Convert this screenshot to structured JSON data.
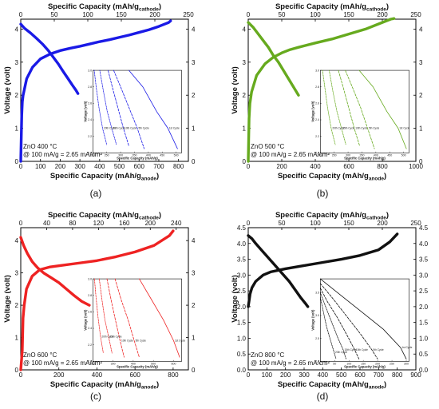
{
  "chart_data": [
    {
      "id": "a",
      "type": "line",
      "panel_label": "(a)",
      "color": "#1a1ae6",
      "xlabel_top": "Specific Capacity (mAh/g",
      "xlabel_top_sub": "cathode",
      "xlabel_top_suffix": ")",
      "xlabel_bottom": "Specific Capacity (mAh/g",
      "xlabel_bottom_sub": "anode",
      "xlabel_bottom_suffix": ")",
      "ylabel": "Voltage (volt)",
      "xlim": [
        0,
        850
      ],
      "ylim": [
        0,
        4.3
      ],
      "x_ticks": [
        0,
        100,
        200,
        300,
        400,
        500,
        600,
        700,
        800
      ],
      "top_ticks": [
        0,
        50,
        100,
        150,
        200,
        250
      ],
      "y_ticks": [
        0,
        1,
        2,
        3,
        4
      ],
      "top_scale": 3.4,
      "legend": [
        "ZnO 400 °C",
        "@ 100 mA/g = 2.65 mA/cm²"
      ],
      "series": [
        {
          "x": [
            0,
            5,
            8,
            12,
            30,
            60,
            100,
            150,
            200,
            250,
            300,
            350,
            400,
            450,
            500,
            550,
            600,
            650,
            700,
            750,
            760
          ],
          "y": [
            0,
            1.4,
            1.8,
            2.0,
            2.5,
            2.85,
            3.1,
            3.25,
            3.35,
            3.42,
            3.48,
            3.55,
            3.62,
            3.68,
            3.75,
            3.82,
            3.9,
            3.98,
            4.08,
            4.2,
            4.25
          ]
        },
        {
          "x": [
            0,
            20,
            50,
            80,
            110,
            140,
            165,
            190,
            215,
            240,
            260,
            280,
            290
          ],
          "y": [
            4.15,
            4.02,
            3.88,
            3.72,
            3.55,
            3.35,
            3.15,
            2.95,
            2.72,
            2.5,
            2.32,
            2.15,
            2.05
          ]
        }
      ],
      "inset": {
        "title": "",
        "xlabel": "Specific Capacity (mAh/g)",
        "ylabel": "Voltage (volt)",
        "x_ticks": [
          200,
          250,
          300,
          350,
          400,
          450,
          500
        ],
        "y_ticks": [
          2.0,
          2.2,
          2.4,
          2.6,
          2.8,
          3.0
        ],
        "xlim": [
          200,
          520
        ],
        "ylim": [
          2.0,
          3.0
        ],
        "curves": [
          {
            "label": "1st Cycle",
            "style": "solid",
            "x": [
              330,
              380,
              430,
              470,
              505
            ],
            "y": [
              3.0,
              2.8,
              2.5,
              2.3,
              2.05
            ]
          },
          {
            "label": "5th Cycle",
            "style": "dashed",
            "x": [
              275,
              300,
              330,
              360,
              385
            ],
            "y": [
              3.0,
              2.8,
              2.55,
              2.3,
              2.05
            ]
          },
          {
            "label": "10th Cycle",
            "style": "dashed",
            "x": [
              255,
              270,
              290,
              310,
              330
            ],
            "y": [
              3.0,
              2.8,
              2.55,
              2.3,
              2.08
            ]
          },
          {
            "label": "15th Cycle",
            "style": "dotted",
            "x": [
              225,
              238,
              252,
              268,
              285
            ],
            "y": [
              3.0,
              2.75,
              2.5,
              2.3,
              2.1
            ]
          },
          {
            "label": "20th Cycle",
            "style": "dotted",
            "x": [
              205,
              212,
              222,
              235,
              250
            ],
            "y": [
              3.0,
              2.8,
              2.55,
              2.3,
              2.1
            ]
          }
        ]
      }
    },
    {
      "id": "b",
      "type": "line",
      "panel_label": "(b)",
      "color": "#66aa1e",
      "xlabel_top": "Specific Capacity (mAh/g",
      "xlabel_top_sub": "cathode",
      "xlabel_top_suffix": ")",
      "xlabel_bottom": "Specific Capacity (mAh/g",
      "xlabel_bottom_sub": "anode",
      "xlabel_bottom_suffix": ")",
      "ylabel": "Voltage (volt)",
      "xlim": [
        0,
        1000
      ],
      "ylim": [
        0,
        4.3
      ],
      "x_ticks": [
        0,
        200,
        400,
        600,
        800,
        1000
      ],
      "top_ticks": [
        0,
        50,
        100,
        150,
        200,
        250
      ],
      "y_ticks": [
        0,
        1,
        2,
        3,
        4
      ],
      "top_scale": 4.0,
      "legend": [
        "ZnO 500 °C",
        "@ 100 mA/g = 2.65 mA/cm²"
      ],
      "series": [
        {
          "x": [
            0,
            5,
            10,
            20,
            50,
            100,
            150,
            200,
            250,
            300,
            400,
            500,
            600,
            700,
            800,
            850,
            870
          ],
          "y": [
            0,
            1.3,
            1.75,
            2.1,
            2.6,
            2.95,
            3.15,
            3.28,
            3.38,
            3.45,
            3.58,
            3.7,
            3.85,
            4.0,
            4.2,
            4.3,
            4.32
          ]
        },
        {
          "x": [
            0,
            30,
            60,
            90,
            120,
            150,
            180,
            210,
            240,
            270,
            300
          ],
          "y": [
            4.2,
            4.05,
            3.85,
            3.65,
            3.45,
            3.2,
            3.0,
            2.75,
            2.5,
            2.25,
            2.0
          ]
        }
      ],
      "inset": {
        "title": "",
        "xlabel": "Specific Capacity (mAh/g)",
        "ylabel": "Voltage (volt)",
        "x_ticks": [
          200,
          250,
          300,
          350,
          400,
          450,
          500
        ],
        "y_ticks": [
          2.0,
          2.2,
          2.4,
          2.6,
          2.8,
          3.0
        ],
        "xlim": [
          200,
          520
        ],
        "ylim": [
          2.0,
          3.0
        ],
        "curves": [
          {
            "label": "1st Cycle",
            "style": "solid",
            "x": [
              340,
              390,
              440,
              480,
              510
            ],
            "y": [
              3.0,
              2.8,
              2.5,
              2.3,
              2.05
            ]
          },
          {
            "label": "5th Cycle",
            "style": "dashed",
            "x": [
              290,
              315,
              345,
              370,
              395
            ],
            "y": [
              3.0,
              2.8,
              2.55,
              2.3,
              2.05
            ]
          },
          {
            "label": "10th Cycle",
            "style": "dashed",
            "x": [
              265,
              282,
              302,
              322,
              342
            ],
            "y": [
              3.0,
              2.8,
              2.55,
              2.3,
              2.08
            ]
          },
          {
            "label": "15th Cycle",
            "style": "dotted",
            "x": [
              232,
              245,
              260,
              276,
              292
            ],
            "y": [
              3.0,
              2.75,
              2.5,
              2.3,
              2.1
            ]
          },
          {
            "label": "20th Cycle",
            "style": "dotted",
            "x": [
              208,
              216,
              226,
              239,
              254
            ],
            "y": [
              3.0,
              2.8,
              2.55,
              2.3,
              2.1
            ]
          }
        ]
      }
    },
    {
      "id": "c",
      "type": "line",
      "panel_label": "(c)",
      "color": "#ee2222",
      "xlabel_top": "Specific Capacity (mAh/g",
      "xlabel_top_sub": "cathode",
      "xlabel_top_suffix": ")",
      "xlabel_bottom": "Specific Capacity (mAh/g",
      "xlabel_bottom_sub": "anode",
      "xlabel_bottom_suffix": ")",
      "ylabel": "Voltage (volt)",
      "xlim": [
        0,
        880
      ],
      "ylim": [
        0,
        4.4
      ],
      "x_ticks": [
        0,
        200,
        400,
        600,
        800
      ],
      "top_ticks": [
        0,
        40,
        80,
        120,
        160,
        200,
        240
      ],
      "y_ticks": [
        0,
        1,
        2,
        3,
        4
      ],
      "top_scale": 3.4,
      "legend": [
        "ZnO 600 °C",
        "@ 100 mA/g = 2.65 mA/cm²"
      ],
      "series": [
        {
          "x": [
            0,
            8,
            12,
            18,
            30,
            60,
            100,
            150,
            200,
            300,
            400,
            500,
            600,
            700,
            780,
            800
          ],
          "y": [
            0,
            0.6,
            1.6,
            2.0,
            2.5,
            2.9,
            3.1,
            3.18,
            3.22,
            3.3,
            3.38,
            3.5,
            3.65,
            3.85,
            4.15,
            4.3
          ]
        },
        {
          "x": [
            0,
            15,
            35,
            60,
            90,
            120,
            160,
            200,
            240,
            280,
            320,
            360
          ],
          "y": [
            4.1,
            3.85,
            3.6,
            3.35,
            3.15,
            3.0,
            2.85,
            2.7,
            2.5,
            2.3,
            2.12,
            2.0
          ]
        }
      ],
      "inset": {
        "title": "",
        "xlabel": "Specific Capacity (mAh/g)",
        "ylabel": "Voltage (volt)",
        "x_ticks": [
          200,
          300,
          400,
          500,
          600
        ],
        "y_ticks": [
          2.0,
          2.2,
          2.4,
          2.6,
          2.8,
          3.0
        ],
        "xlim": [
          200,
          640
        ],
        "ylim": [
          2.0,
          3.0
        ],
        "curves": [
          {
            "label": "1st Cycle",
            "style": "solid",
            "x": [
              430,
              490,
              550,
              600,
              630
            ],
            "y": [
              3.0,
              2.75,
              2.5,
              2.25,
              2.05
            ]
          },
          {
            "label": "5th Cycle",
            "style": "dashed",
            "x": [
              310,
              340,
              375,
              405,
              430
            ],
            "y": [
              3.0,
              2.75,
              2.5,
              2.25,
              2.05
            ]
          },
          {
            "label": "10th Cycle",
            "style": "dashed",
            "x": [
              270,
              290,
              312,
              335,
              355
            ],
            "y": [
              3.0,
              2.75,
              2.5,
              2.25,
              2.05
            ]
          },
          {
            "label": "15th Cycle",
            "style": "dotted",
            "x": [
              232,
              245,
              260,
              278,
              295
            ],
            "y": [
              3.0,
              2.75,
              2.5,
              2.3,
              2.1
            ]
          },
          {
            "label": "20th Cycle",
            "style": "dotted",
            "x": [
              208,
              215,
              225,
              238,
              252
            ],
            "y": [
              3.0,
              2.8,
              2.55,
              2.3,
              2.1
            ]
          }
        ]
      }
    },
    {
      "id": "d",
      "type": "line",
      "panel_label": "(d)",
      "color": "#111111",
      "xlabel_top": "Specific Capacity (mAh/g",
      "xlabel_top_sub": "cathode",
      "xlabel_top_suffix": ")",
      "xlabel_bottom": "Specific Capacity (mAh/g",
      "xlabel_bottom_sub": "anode",
      "xlabel_bottom_suffix": ")",
      "ylabel": "Voltage (volt)",
      "xlim": [
        0,
        900
      ],
      "ylim": [
        0,
        4.5
      ],
      "x_ticks": [
        0,
        100,
        200,
        300,
        400,
        500,
        600,
        700,
        800,
        900
      ],
      "top_ticks": [
        0,
        50,
        100,
        150,
        200,
        250
      ],
      "y_ticks": [
        0,
        0.5,
        1.0,
        1.5,
        2.0,
        2.5,
        3.0,
        3.5,
        4.0,
        4.5
      ],
      "top_scale": 3.6,
      "legend": [
        "ZnO 800 °C",
        "@ 100 mA/g = 2.65 mA/cm²"
      ],
      "series": [
        {
          "x": [
            0,
            5,
            10,
            20,
            40,
            80,
            120,
            160,
            200,
            300,
            400,
            500,
            600,
            700,
            760,
            800
          ],
          "y": [
            2.0,
            2.2,
            2.4,
            2.6,
            2.8,
            3.0,
            3.1,
            3.15,
            3.2,
            3.3,
            3.4,
            3.5,
            3.62,
            3.8,
            4.05,
            4.3
          ]
        },
        {
          "x": [
            0,
            20,
            40,
            70,
            100,
            130,
            160,
            190,
            220,
            250,
            280,
            310,
            320
          ],
          "y": [
            4.25,
            4.15,
            4.0,
            3.8,
            3.6,
            3.4,
            3.2,
            3.0,
            2.8,
            2.55,
            2.3,
            2.08,
            2.0
          ]
        }
      ],
      "inset": {
        "title": "",
        "xlabel": "Specific Capacity (mAh/g)",
        "ylabel": "Voltage (volt)",
        "x_ticks": [
          0,
          50,
          100,
          150,
          200,
          250,
          300
        ],
        "y_ticks": [
          2.0,
          2.5,
          3.0,
          3.5,
          4.0
        ],
        "xlim": [
          0,
          310
        ],
        "ylim": [
          2.0,
          3.8
        ],
        "curves": [
          {
            "label": "1st Cycle",
            "style": "solid",
            "x": [
              0,
              60,
              140,
              220,
              280,
              300
            ],
            "y": [
              3.8,
              3.5,
              3.1,
              2.7,
              2.3,
              2.05
            ]
          },
          {
            "label": "5th Cycle",
            "style": "dashed",
            "x": [
              0,
              40,
              90,
              140,
              180,
              200
            ],
            "y": [
              3.7,
              3.4,
              3.0,
              2.6,
              2.25,
              2.05
            ]
          },
          {
            "label": "10th Cycle",
            "style": "dashed",
            "x": [
              0,
              25,
              60,
              95,
              120,
              135
            ],
            "y": [
              3.6,
              3.3,
              2.95,
              2.55,
              2.25,
              2.05
            ]
          },
          {
            "label": "15th Cycle",
            "style": "dotted",
            "x": [
              0,
              18,
              40,
              62,
              80,
              90
            ],
            "y": [
              3.5,
              3.2,
              2.85,
              2.5,
              2.25,
              2.05
            ]
          },
          {
            "label": "20th Cycle",
            "style": "dotted",
            "x": [
              0,
              10,
              22,
              36,
              48,
              55
            ],
            "y": [
              3.4,
              3.1,
              2.75,
              2.45,
              2.2,
              2.05
            ]
          }
        ]
      }
    }
  ]
}
